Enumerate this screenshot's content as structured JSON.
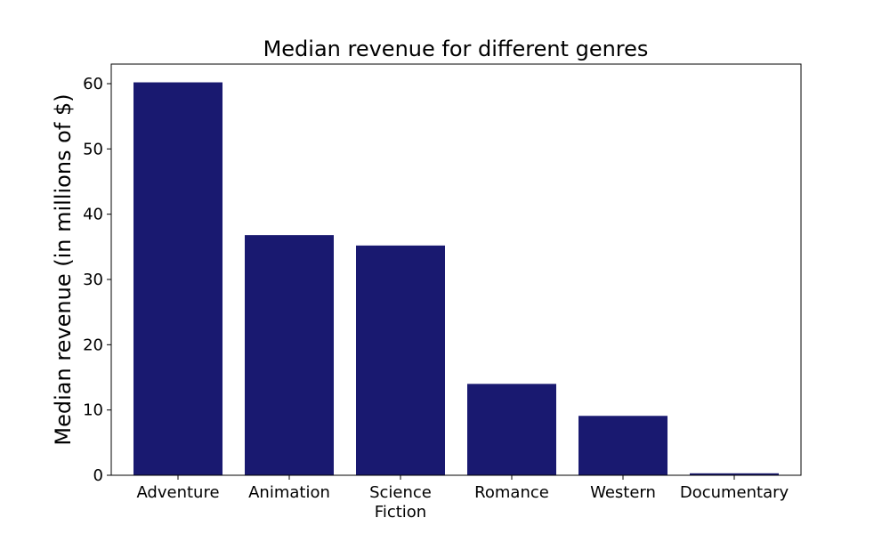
{
  "chart_data": {
    "type": "bar",
    "title": "Median revenue for different genres",
    "xlabel": "",
    "ylabel": "Median revenue (in millions of $)",
    "categories": [
      "Adventure",
      "Animation",
      "Science Fiction",
      "Romance",
      "Western",
      "Documentary"
    ],
    "category_lines": [
      [
        "Adventure"
      ],
      [
        "Animation"
      ],
      [
        "Science",
        "Fiction"
      ],
      [
        "Romance"
      ],
      [
        "Western"
      ],
      [
        "Documentary"
      ]
    ],
    "values": [
      60.2,
      36.8,
      35.2,
      14.0,
      9.1,
      0.3
    ],
    "ylim": [
      0,
      63
    ],
    "yticks": [
      0,
      10,
      20,
      30,
      40,
      50,
      60
    ],
    "bar_color": "#191970",
    "grid": false,
    "legend": "none"
  }
}
